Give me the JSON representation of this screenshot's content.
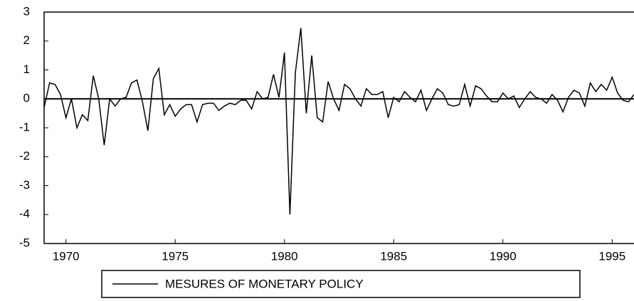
{
  "chart_data": {
    "type": "line",
    "x": [
      1969,
      1969.25,
      1969.5,
      1969.75,
      1970,
      1970.25,
      1970.5,
      1970.75,
      1971,
      1971.25,
      1971.5,
      1971.75,
      1972,
      1972.25,
      1972.5,
      1972.75,
      1973,
      1973.25,
      1973.5,
      1973.75,
      1974,
      1974.25,
      1974.5,
      1974.75,
      1975,
      1975.25,
      1975.5,
      1975.75,
      1976,
      1976.25,
      1976.5,
      1976.75,
      1977,
      1977.25,
      1977.5,
      1977.75,
      1978,
      1978.25,
      1978.5,
      1978.75,
      1979,
      1979.25,
      1979.5,
      1979.75,
      1980,
      1980.25,
      1980.5,
      1980.75,
      1981,
      1981.25,
      1981.5,
      1981.75,
      1982,
      1982.25,
      1982.5,
      1982.75,
      1983,
      1983.25,
      1983.5,
      1983.75,
      1984,
      1984.25,
      1984.5,
      1984.75,
      1985,
      1985.25,
      1985.5,
      1985.75,
      1986,
      1986.25,
      1986.5,
      1986.75,
      1987,
      1987.25,
      1987.5,
      1987.75,
      1988,
      1988.25,
      1988.5,
      1988.75,
      1989,
      1989.25,
      1989.5,
      1989.75,
      1990,
      1990.25,
      1990.5,
      1990.75,
      1991,
      1991.25,
      1991.5,
      1991.75,
      1992,
      1992.25,
      1992.5,
      1992.75,
      1993,
      1993.25,
      1993.5,
      1993.75,
      1994,
      1994.25,
      1994.5,
      1994.75,
      1995,
      1995.25,
      1995.5,
      1995.75,
      1996
    ],
    "series": [
      {
        "name": "MESURES OF MONETARY POLICY",
        "color": "#000000",
        "values": [
          -0.3,
          0.55,
          0.5,
          0.15,
          -0.65,
          0.0,
          -1.0,
          -0.55,
          -0.75,
          0.8,
          0.0,
          -1.6,
          0.0,
          -0.25,
          0.0,
          0.05,
          0.55,
          0.65,
          -0.1,
          -1.1,
          0.7,
          1.05,
          -0.55,
          -0.2,
          -0.6,
          -0.35,
          -0.2,
          -0.2,
          -0.8,
          -0.2,
          -0.15,
          -0.15,
          -0.4,
          -0.25,
          -0.15,
          -0.2,
          -0.05,
          -0.05,
          -0.35,
          0.25,
          0.0,
          0.05,
          0.85,
          0.05,
          1.6,
          -4.0,
          0.9,
          2.45,
          -0.5,
          1.5,
          -0.65,
          -0.8,
          0.6,
          0.0,
          -0.4,
          0.5,
          0.35,
          0.0,
          -0.25,
          0.35,
          0.15,
          0.15,
          0.25,
          -0.65,
          0.05,
          -0.1,
          0.25,
          0.05,
          -0.1,
          0.3,
          -0.4,
          0.0,
          0.35,
          0.2,
          -0.2,
          -0.25,
          -0.2,
          0.5,
          -0.25,
          0.45,
          0.35,
          0.1,
          -0.1,
          -0.1,
          0.2,
          0.0,
          0.1,
          -0.3,
          0.0,
          0.25,
          0.05,
          0.0,
          -0.15,
          0.15,
          -0.05,
          -0.45,
          0.05,
          0.3,
          0.2,
          -0.25,
          0.55,
          0.25,
          0.5,
          0.3,
          0.75,
          0.2,
          -0.05,
          -0.1,
          0.15
        ]
      }
    ],
    "xlim": [
      1969,
      1996
    ],
    "xticks": [
      1970,
      1975,
      1980,
      1985,
      1990,
      1995
    ],
    "ylim": [
      -5,
      3
    ],
    "yticks": [
      -5,
      -4,
      -3,
      -2,
      -1,
      0,
      1,
      2,
      3
    ]
  }
}
